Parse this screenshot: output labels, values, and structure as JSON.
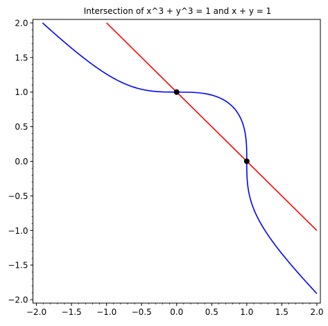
{
  "chart_data": {
    "type": "line",
    "title": "Intersection of x^3 + y^3 = 1 and x + y = 1",
    "xlabel": "",
    "ylabel": "",
    "xlim": [
      -2.05,
      2.05
    ],
    "ylim": [
      -2.05,
      2.05
    ],
    "xticks": [
      -2.0,
      -1.5,
      -1.0,
      -0.5,
      0.0,
      0.5,
      1.0,
      1.5,
      2.0
    ],
    "yticks": [
      -2.0,
      -1.5,
      -1.0,
      -0.5,
      0.0,
      0.5,
      1.0,
      1.5,
      2.0
    ],
    "xtick_labels": [
      "−2.0",
      "−1.5",
      "−1.0",
      "−0.5",
      "0.0",
      "0.5",
      "1.0",
      "1.5",
      "2.0"
    ],
    "ytick_labels": [
      "−2.0",
      "−1.5",
      "−1.0",
      "−0.5",
      "0.0",
      "0.5",
      "1.0",
      "1.5",
      "2.0"
    ],
    "minor_tick_step": 0.1,
    "grid": false,
    "series": [
      {
        "kind": "curve",
        "color": "#0000ff",
        "y_range": [
          -1.913,
          2.0
        ],
        "points_x_from_y": "x = cbrt(1 - y^3)"
      },
      {
        "kind": "line",
        "color": "#ff0000",
        "x": [
          -1.0,
          2.0
        ],
        "y": [
          2.0,
          -1.0
        ]
      }
    ],
    "points": [
      {
        "x": 0.0,
        "y": 1.0,
        "color": "#000000"
      },
      {
        "x": 1.0,
        "y": 0.0,
        "color": "#000000"
      }
    ]
  }
}
